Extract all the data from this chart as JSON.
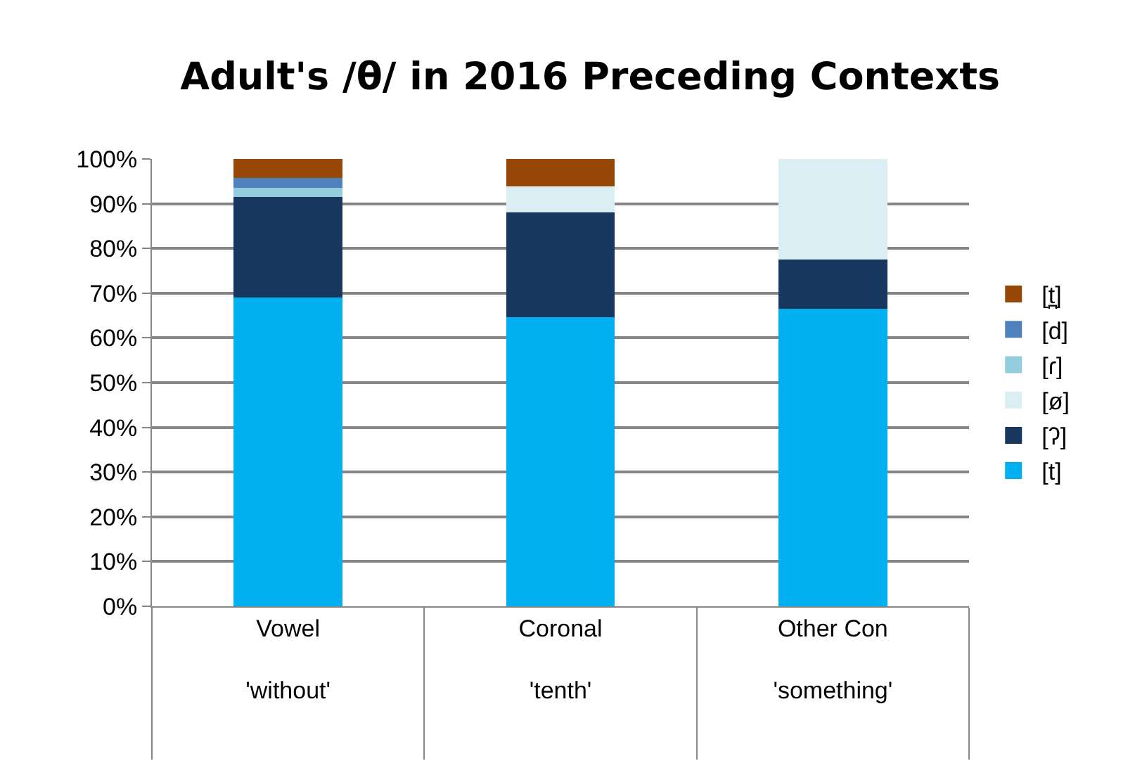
{
  "chart_data": {
    "type": "bar",
    "title": "Adult's /θ/ in 2016 Preceding Contexts",
    "categories": [
      "Vowel\n'without'",
      "Coronal\n'tenth'",
      "Other Con\n'something'"
    ],
    "stacked": true,
    "grid": "y",
    "legend": "right",
    "ylim": [
      0,
      100
    ],
    "yticks": [
      {
        "value": 0,
        "label": "0%"
      },
      {
        "value": 10,
        "label": "10%"
      },
      {
        "value": 20,
        "label": "20%"
      },
      {
        "value": 30,
        "label": "30%"
      },
      {
        "value": 40,
        "label": "40%"
      },
      {
        "value": 50,
        "label": "50%"
      },
      {
        "value": 60,
        "label": "60%"
      },
      {
        "value": 70,
        "label": "70%"
      },
      {
        "value": 80,
        "label": "80%"
      },
      {
        "value": 90,
        "label": "90%"
      },
      {
        "value": 100,
        "label": "100%"
      }
    ],
    "series": [
      {
        "name": "[t]",
        "color": "#00b0f0",
        "values": [
          69.1,
          64.6,
          66.5
        ]
      },
      {
        "name": "[ʔ]",
        "color": "#17375e",
        "values": [
          22.4,
          23.5,
          11
        ]
      },
      {
        "name": "[ø]",
        "color": "#dbeef4",
        "values": [
          null,
          5.8,
          22.5
        ]
      },
      {
        "name": "[ɾ]",
        "color": "#93cddd",
        "values": [
          2.1,
          null,
          null
        ]
      },
      {
        "name": "[d]",
        "color": "#4f81bd",
        "values": [
          2.2,
          null,
          null
        ]
      },
      {
        "name": "[t̪]",
        "color": "#974706",
        "values": [
          4.2,
          6.1,
          null
        ]
      }
    ]
  }
}
